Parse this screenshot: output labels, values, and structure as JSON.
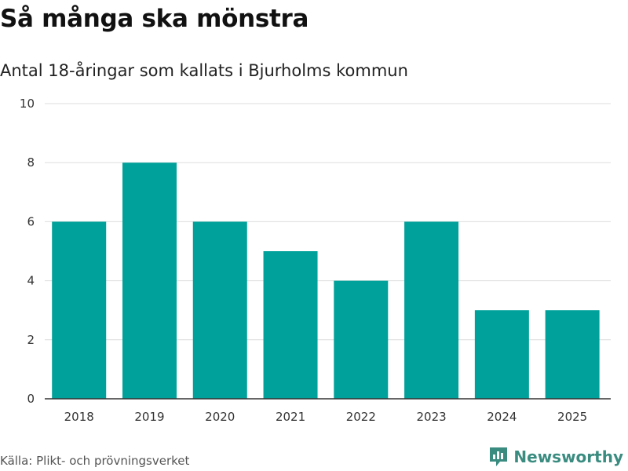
{
  "header": {
    "title": "Så många ska mönstra",
    "subtitle": "Antal 18-åringar som kallats i Bjurholms kommun"
  },
  "footer": {
    "source": "Källa: Plikt- och prövningsverket",
    "brand": "Newsworthy"
  },
  "colors": {
    "bar": "#00a19a",
    "grid": "#dedede",
    "axis": "#333333",
    "brand": "#3a8c80"
  },
  "chart_data": {
    "type": "bar",
    "title": "Så många ska mönstra",
    "subtitle": "Antal 18-åringar som kallats i Bjurholms kommun",
    "xlabel": "",
    "ylabel": "",
    "categories": [
      "2018",
      "2019",
      "2020",
      "2021",
      "2022",
      "2023",
      "2024",
      "2025"
    ],
    "values": [
      6,
      8,
      6,
      5,
      4,
      6,
      3,
      3
    ],
    "ylim": [
      0,
      10
    ],
    "yticks": [
      0,
      2,
      4,
      6,
      8,
      10
    ],
    "grid": true,
    "legend": "none"
  }
}
